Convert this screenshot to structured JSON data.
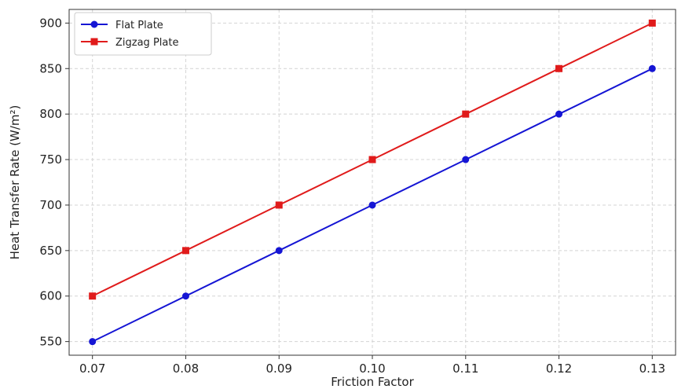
{
  "chart_data": {
    "type": "line",
    "title": "",
    "xlabel": "Friction Factor",
    "ylabel": "Heat Transfer Rate (W/m²)",
    "x": [
      0.07,
      0.08,
      0.09,
      0.1,
      0.11,
      0.12,
      0.13
    ],
    "x_tick_labels": [
      "0.07",
      "0.08",
      "0.09",
      "0.10",
      "0.11",
      "0.12",
      "0.13"
    ],
    "y_ticks": [
      550,
      600,
      650,
      700,
      750,
      800,
      850,
      900
    ],
    "xlim": [
      0.0675,
      0.1325
    ],
    "ylim": [
      535,
      915
    ],
    "grid": true,
    "legend_position": "top-left",
    "series": [
      {
        "name": "Flat Plate",
        "color": "#1515d4",
        "marker": "circle",
        "values": [
          550,
          600,
          650,
          700,
          750,
          800,
          850
        ]
      },
      {
        "name": "Zigzag Plate",
        "color": "#e01b1b",
        "marker": "square",
        "values": [
          600,
          650,
          700,
          750,
          800,
          850,
          900
        ]
      }
    ]
  }
}
